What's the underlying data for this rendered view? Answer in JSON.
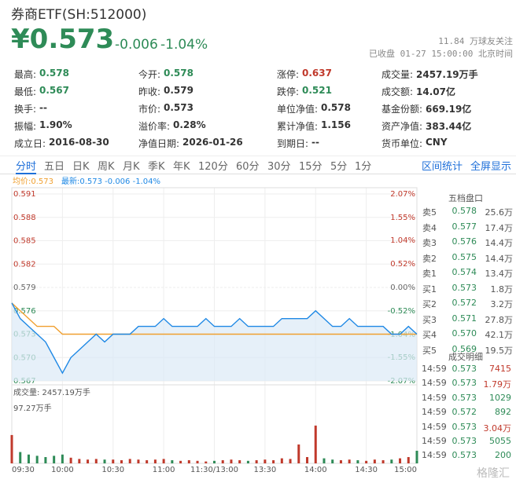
{
  "header": {
    "name": "券商ETF(SH:512000)",
    "price": "¥0.573",
    "change": "-0.006",
    "pct": "-1.04%",
    "followers": "11.84 万球友关注",
    "status": "已收盘 01-27 15:00:00 北京时间"
  },
  "stats": [
    [
      {
        "label": "最高:",
        "value": "0.578",
        "color": "#2e8b57"
      },
      {
        "label": "今开:",
        "value": "0.578",
        "color": "#2e8b57"
      },
      {
        "label": "涨停:",
        "value": "0.637",
        "color": "#c0392b"
      },
      {
        "label": "成交量:",
        "value": "2457.19万手"
      }
    ],
    [
      {
        "label": "最低:",
        "value": "0.567",
        "color": "#2e8b57"
      },
      {
        "label": "昨收:",
        "value": "0.579"
      },
      {
        "label": "跌停:",
        "value": "0.521",
        "color": "#2e8b57"
      },
      {
        "label": "成交额:",
        "value": "14.07亿"
      }
    ],
    [
      {
        "label": "换手:",
        "value": "--"
      },
      {
        "label": "市价:",
        "value": "0.573"
      },
      {
        "label": "单位净值:",
        "value": "0.578"
      },
      {
        "label": "基金份额:",
        "value": "669.19亿"
      }
    ],
    [
      {
        "label": "振幅:",
        "value": "1.90%"
      },
      {
        "label": "溢价率:",
        "value": "0.28%"
      },
      {
        "label": "累计净值:",
        "value": "1.156"
      },
      {
        "label": "资产净值:",
        "value": "383.44亿"
      }
    ],
    [
      {
        "label": "成立日:",
        "value": "2016-08-30"
      },
      {
        "label": "净值日期:",
        "value": "2026-01-26"
      },
      {
        "label": "到期日:",
        "value": "--"
      },
      {
        "label": "货币单位:",
        "value": "CNY"
      }
    ]
  ],
  "tabs": [
    "分时",
    "五日",
    "日K",
    "周K",
    "月K",
    "季K",
    "年K",
    "120分",
    "60分",
    "30分",
    "15分",
    "5分",
    "1分"
  ],
  "links": [
    "区间统计",
    "全屏显示"
  ],
  "book": {
    "title": "五档盘口",
    "rows": [
      [
        "卖5",
        "0.578",
        "25.6万"
      ],
      [
        "卖4",
        "0.577",
        "17.4万"
      ],
      [
        "卖3",
        "0.576",
        "14.4万"
      ],
      [
        "卖2",
        "0.575",
        "14.4万"
      ],
      [
        "卖1",
        "0.574",
        "13.4万"
      ],
      [
        "买1",
        "0.573",
        "1.8万"
      ],
      [
        "买2",
        "0.572",
        "3.2万"
      ],
      [
        "买3",
        "0.571",
        "27.8万"
      ],
      [
        "买4",
        "0.570",
        "42.1万"
      ],
      [
        "买5",
        "0.569",
        "19.5万"
      ]
    ]
  },
  "trades": {
    "title": "成交明细",
    "rows": [
      {
        "cells": [
          "14:59",
          "0.573",
          "7415"
        ],
        "color": "#c0392b"
      },
      {
        "cells": [
          "14:59",
          "0.573",
          "1.79万"
        ],
        "color": "#c0392b"
      },
      {
        "cells": [
          "14:59",
          "0.573",
          "1029"
        ],
        "color": "#2e8b57"
      },
      {
        "cells": [
          "14:59",
          "0.572",
          "892"
        ],
        "color": "#2e8b57"
      },
      {
        "cells": [
          "14:59",
          "0.573",
          "3.04万"
        ],
        "color": "#c0392b"
      },
      {
        "cells": [
          "14:59",
          "0.573",
          "5055"
        ],
        "color": "#2e8b57"
      },
      {
        "cells": [
          "14:59",
          "0.573",
          "200"
        ],
        "color": "#2e8b57"
      }
    ]
  },
  "watermark": "格隆汇",
  "chart_data": [
    {
      "type": "line",
      "avg_label": "均价:0.573",
      "last_label": "最新:0.573 -0.006 -1.04%",
      "x": [
        0,
        5,
        10,
        15,
        20,
        25,
        30,
        35,
        40,
        45,
        50,
        55,
        60,
        65,
        70,
        75,
        80,
        85,
        90,
        95,
        100,
        105,
        110,
        115,
        120,
        125,
        130,
        135,
        140,
        145,
        150,
        155,
        160,
        165,
        170,
        175,
        180,
        185,
        190,
        195,
        200,
        205,
        210,
        215,
        220,
        225,
        230,
        235,
        240
      ],
      "xlim": [
        0,
        240
      ],
      "xticks": [
        {
          "value": 0,
          "label": "09:30"
        },
        {
          "value": 30,
          "label": "10:00"
        },
        {
          "value": 60,
          "label": "10:30"
        },
        {
          "value": 90,
          "label": "11:00"
        },
        {
          "value": 120,
          "label": "11:30/13:00"
        },
        {
          "value": 150,
          "label": "13:30"
        },
        {
          "value": 180,
          "label": "14:00"
        },
        {
          "value": 210,
          "label": "14:30"
        },
        {
          "value": 240,
          "label": "15:00"
        }
      ],
      "ylim": [
        0.567,
        0.591
      ],
      "yticks": [
        0.591,
        0.588,
        0.585,
        0.582,
        0.579,
        0.576,
        0.573,
        {
          "value": 0.57,
          "label": "0.570"
        },
        0.567
      ],
      "y2lim": [
        -2.07,
        2.07
      ],
      "y2ticks": [
        {
          "value": 2.07,
          "label": "2.07%"
        },
        {
          "value": 1.55,
          "label": "1.55%"
        },
        {
          "value": 1.04,
          "label": "1.04%"
        },
        {
          "value": 0.52,
          "label": "0.52%"
        },
        {
          "value": 0,
          "label": "0.00%"
        },
        {
          "value": -0.52,
          "label": "-0.52%"
        },
        {
          "value": -1.04,
          "label": "-1.04%"
        },
        {
          "value": -1.55,
          "label": "-1.55%"
        },
        {
          "value": -2.07,
          "label": "-2.07%"
        }
      ],
      "grid": true,
      "series": [
        {
          "color": "#1e88e5",
          "values": [
            0.577,
            0.575,
            0.574,
            0.573,
            0.572,
            0.57,
            0.568,
            0.57,
            0.571,
            0.572,
            0.573,
            0.572,
            0.573,
            0.573,
            0.573,
            0.574,
            0.574,
            0.574,
            0.575,
            0.574,
            0.574,
            0.574,
            0.574,
            0.575,
            0.574,
            0.574,
            0.574,
            0.575,
            0.574,
            0.574,
            0.574,
            0.574,
            0.575,
            0.575,
            0.575,
            0.575,
            0.576,
            0.575,
            0.574,
            0.574,
            0.575,
            0.574,
            0.574,
            0.574,
            0.574,
            0.573,
            0.573,
            0.574,
            0.573
          ]
        },
        {
          "color": "#f0a030",
          "values": [
            0.577,
            0.576,
            0.575,
            0.574,
            0.574,
            0.574,
            0.573,
            0.573,
            0.573,
            0.573,
            0.573,
            0.573,
            0.573,
            0.573,
            0.573,
            0.573,
            0.573,
            0.573,
            0.573,
            0.573,
            0.573,
            0.573,
            0.573,
            0.573,
            0.573,
            0.573,
            0.573,
            0.573,
            0.573,
            0.573,
            0.573,
            0.573,
            0.573,
            0.573,
            0.573,
            0.573,
            0.573,
            0.573,
            0.573,
            0.573,
            0.573,
            0.573,
            0.573,
            0.573,
            0.573,
            0.573,
            0.573,
            0.573,
            0.573
          ]
        }
      ]
    },
    {
      "type": "bar",
      "title": "成交量: 2457.19万手",
      "x": [
        0,
        5,
        10,
        15,
        20,
        25,
        30,
        35,
        40,
        45,
        50,
        55,
        60,
        65,
        70,
        75,
        80,
        85,
        90,
        95,
        100,
        105,
        110,
        115,
        120,
        125,
        130,
        135,
        140,
        145,
        150,
        155,
        160,
        165,
        170,
        175,
        180,
        185,
        190,
        195,
        200,
        205,
        210,
        215,
        220,
        225,
        230,
        235,
        240
      ],
      "xlim": [
        0,
        240
      ],
      "ylim": [
        0,
        97.27
      ],
      "yticks": [
        {
          "value": 97.27,
          "label": "97.27万手"
        }
      ],
      "up_color": "#c0392b",
      "down_color": "#2e8b57",
      "values": [
        45,
        18,
        14,
        12,
        10,
        12,
        14,
        9,
        7,
        6,
        7,
        6,
        6,
        5,
        7,
        6,
        5,
        6,
        7,
        5,
        4,
        5,
        4,
        3,
        4,
        5,
        6,
        5,
        4,
        5,
        6,
        5,
        8,
        7,
        30,
        10,
        60,
        8,
        6,
        5,
        6,
        5,
        4,
        6,
        5,
        6,
        8,
        10,
        20
      ]
    }
  ]
}
